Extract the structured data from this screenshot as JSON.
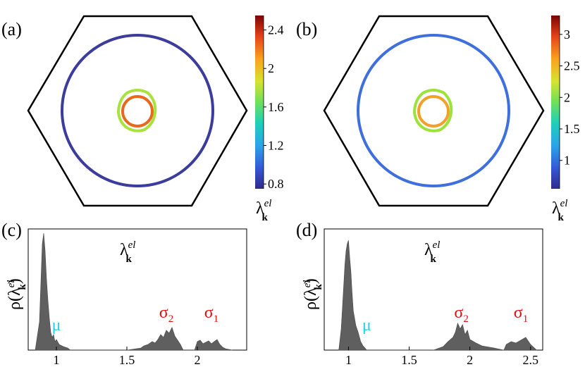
{
  "colors": {
    "hexagon": "#000000",
    "histogram_fill": "#5f5f5f",
    "mu_label": "#19d3e6",
    "sigma_label": "#e01010",
    "colormap": [
      "#302a8c",
      "#3558d6",
      "#2aa5e8",
      "#1fd0b8",
      "#6fe05a",
      "#d7e330",
      "#f9a21e",
      "#e4421a",
      "#7a0403"
    ]
  },
  "chart_data": [
    {
      "type": "heatmap",
      "panel": "(a)",
      "description": "Fermi surface map in hexagonal Brillouin zone colored by lambda_k^el",
      "colorbar": {
        "label_main": "λ",
        "label_sup": "el",
        "label_sub": "k",
        "range": [
          0.75,
          2.55
        ],
        "ticks": [
          "2.4",
          "2",
          "1.6",
          "1.2",
          "0.8"
        ],
        "tick_values": [
          2.4,
          2.0,
          1.6,
          1.2,
          0.8
        ]
      },
      "sheets": [
        {
          "name": "sigma2",
          "value": 1.75,
          "color": "#a8e23a",
          "shape": "rounded-hexagon"
        },
        {
          "name": "sigma1",
          "value": 2.25,
          "color": "#e8691e",
          "shape": "circle"
        },
        {
          "name": "mu",
          "value": 0.85,
          "color": "#3b3c9c",
          "shape": "circle"
        }
      ]
    },
    {
      "type": "heatmap",
      "panel": "(b)",
      "description": "Fermi surface map in hexagonal Brillouin zone colored by lambda_k^el",
      "colorbar": {
        "label_main": "λ",
        "label_sup": "el",
        "label_sub": "k",
        "range": [
          0.55,
          3.3
        ],
        "ticks": [
          "3",
          "2.5",
          "2",
          "1.5",
          "1"
        ],
        "tick_values": [
          3.0,
          2.5,
          2.0,
          1.5,
          1.0
        ]
      },
      "sheets": [
        {
          "name": "sigma2",
          "value": 1.9,
          "color": "#9be23a",
          "shape": "rounded-hexagon"
        },
        {
          "name": "sigma1",
          "value": 2.45,
          "color": "#f2a02a",
          "shape": "circle"
        },
        {
          "name": "mu",
          "value": 1.05,
          "color": "#3e6fdc",
          "shape": "circle"
        }
      ]
    },
    {
      "type": "area",
      "panel": "(c)",
      "title": "λ",
      "title_sup": "el",
      "title_sub": "k",
      "ylabel": "ρ(λ)",
      "ylabel_main": "ρ(λ",
      "ylabel_close": ")",
      "xlim": [
        0.8,
        2.35
      ],
      "xticks": [
        "1",
        "1.5",
        "2"
      ],
      "xtick_values": [
        1.0,
        1.5,
        2.0
      ],
      "annotations": [
        {
          "text": "μ",
          "sub": "",
          "x": 1.0,
          "kind": "mu"
        },
        {
          "text": "σ",
          "sub": "2",
          "x": 1.78,
          "kind": "sigma"
        },
        {
          "text": "σ",
          "sub": "1",
          "x": 2.1,
          "kind": "sigma"
        }
      ],
      "x": [
        0.85,
        0.88,
        0.9,
        0.91,
        0.92,
        0.93,
        0.94,
        0.95,
        0.96,
        0.97,
        0.98,
        0.99,
        1.0,
        1.02,
        1.05,
        1.08,
        1.1,
        1.4,
        1.5,
        1.6,
        1.62,
        1.65,
        1.68,
        1.7,
        1.72,
        1.74,
        1.76,
        1.78,
        1.8,
        1.82,
        1.84,
        1.86,
        1.88,
        1.9,
        1.98,
        2.0,
        2.02,
        2.04,
        2.06,
        2.08,
        2.1,
        2.12,
        2.14,
        2.16,
        2.18,
        2.2,
        2.25
      ],
      "y": [
        0,
        40,
        150,
        165,
        140,
        100,
        70,
        45,
        25,
        18,
        22,
        12,
        15,
        8,
        5,
        3,
        0,
        0,
        0,
        3,
        6,
        8,
        12,
        10,
        15,
        22,
        18,
        28,
        24,
        32,
        20,
        14,
        8,
        0,
        0,
        12,
        14,
        9,
        11,
        13,
        9,
        12,
        15,
        8,
        4,
        2,
        0
      ]
    },
    {
      "type": "area",
      "panel": "(d)",
      "title": "λ",
      "title_sup": "el",
      "title_sub": "k",
      "ylabel": "ρ(λ)",
      "ylabel_main": "ρ(λ",
      "ylabel_close": ")",
      "xlim": [
        0.8,
        2.6
      ],
      "xticks": [
        "1",
        "1.5",
        "2",
        "2.5"
      ],
      "xtick_values": [
        1.0,
        1.5,
        2.0,
        2.5
      ],
      "annotations": [
        {
          "text": "μ",
          "sub": "",
          "x": 1.15,
          "kind": "mu"
        },
        {
          "text": "σ",
          "sub": "2",
          "x": 1.93,
          "kind": "sigma"
        },
        {
          "text": "σ",
          "sub": "1",
          "x": 2.42,
          "kind": "sigma"
        }
      ],
      "x": [
        0.92,
        0.94,
        0.96,
        0.97,
        0.98,
        0.99,
        1.0,
        1.01,
        1.02,
        1.03,
        1.04,
        1.05,
        1.06,
        1.08,
        1.1,
        1.12,
        1.15,
        1.7,
        1.78,
        1.82,
        1.86,
        1.88,
        1.9,
        1.92,
        1.94,
        1.96,
        1.98,
        2.0,
        2.05,
        2.1,
        2.2,
        2.28,
        2.3,
        2.34,
        2.38,
        2.42,
        2.46,
        2.5,
        2.55
      ],
      "y": [
        0,
        30,
        90,
        120,
        140,
        150,
        155,
        130,
        110,
        80,
        55,
        45,
        35,
        25,
        12,
        6,
        0,
        0,
        5,
        12,
        18,
        25,
        38,
        30,
        36,
        22,
        28,
        15,
        10,
        6,
        3,
        0,
        8,
        12,
        10,
        14,
        18,
        8,
        0
      ]
    }
  ]
}
